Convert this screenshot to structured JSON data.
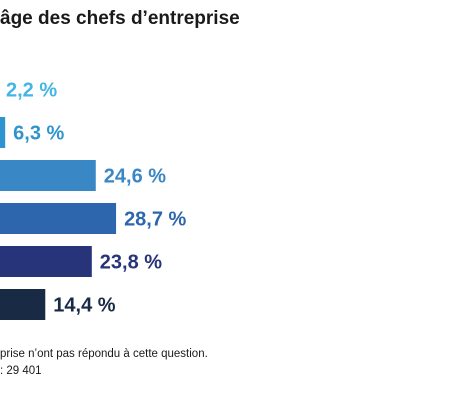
{
  "title": "âge des chefs d’entreprise",
  "chart_data": {
    "type": "bar",
    "orientation": "horizontal",
    "title": "âge des chefs d’entreprise",
    "categories": [
      "",
      "",
      "",
      "",
      "",
      ""
    ],
    "values": [
      2.2,
      6.3,
      24.6,
      28.7,
      23.8,
      14.4
    ],
    "labels": [
      "2,2 %",
      "6,3 %",
      "24,6 %",
      "28,7 %",
      "23,8 %",
      "14,4 %"
    ],
    "colors": [
      "#45b5e4",
      "#2f93cf",
      "#3a87c5",
      "#2d66ad",
      "#27347a",
      "#182a44"
    ],
    "label_colors": [
      "#45b5e4",
      "#2f93cf",
      "#3a87c5",
      "#2d66ad",
      "#27347a",
      "#182a44"
    ],
    "grid": false,
    "legend": "none"
  },
  "footnote": {
    "line1": "prise n’ont pas répondu à cette question.",
    "line2": ": 29 401"
  }
}
